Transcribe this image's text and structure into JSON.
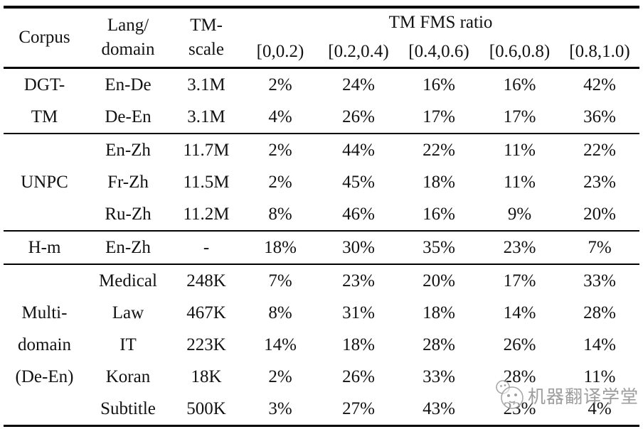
{
  "table": {
    "span_header": "TM FMS ratio",
    "columns": {
      "corpus": "Corpus",
      "lang_domain": "Lang/\ndomain",
      "tm_scale": "TM-\nscale"
    },
    "ratio_bins": [
      "[0,0.2)",
      "[0.2,0.4)",
      "[0.4,0.6)",
      "[0.6,0.8)",
      "[0.8,1.0)"
    ],
    "groups": [
      {
        "corpus": "DGT-\nTM",
        "rows": [
          {
            "lang": "En-De",
            "scale": "3.1M",
            "ratios": [
              "2%",
              "24%",
              "16%",
              "16%",
              "42%"
            ]
          },
          {
            "lang": "De-En",
            "scale": "3.1M",
            "ratios": [
              "4%",
              "26%",
              "17%",
              "17%",
              "36%"
            ]
          }
        ]
      },
      {
        "corpus": "UNPC",
        "rows": [
          {
            "lang": "En-Zh",
            "scale": "11.7M",
            "ratios": [
              "2%",
              "44%",
              "22%",
              "11%",
              "22%"
            ]
          },
          {
            "lang": "Fr-Zh",
            "scale": "11.5M",
            "ratios": [
              "2%",
              "45%",
              "18%",
              "11%",
              "23%"
            ]
          },
          {
            "lang": "Ru-Zh",
            "scale": "11.2M",
            "ratios": [
              "8%",
              "46%",
              "16%",
              "9%",
              "20%"
            ]
          }
        ]
      },
      {
        "corpus": "H-m",
        "rows": [
          {
            "lang": "En-Zh",
            "scale": "-",
            "ratios": [
              "18%",
              "30%",
              "35%",
              "23%",
              "7%"
            ]
          }
        ]
      },
      {
        "corpus": "Multi-\ndomain\n(De-En)",
        "rows": [
          {
            "lang": "Medical",
            "scale": "248K",
            "ratios": [
              "7%",
              "23%",
              "20%",
              "17%",
              "33%"
            ]
          },
          {
            "lang": "Law",
            "scale": "467K",
            "ratios": [
              "8%",
              "31%",
              "18%",
              "14%",
              "28%"
            ]
          },
          {
            "lang": "IT",
            "scale": "223K",
            "ratios": [
              "14%",
              "18%",
              "28%",
              "26%",
              "14%"
            ]
          },
          {
            "lang": "Koran",
            "scale": "18K",
            "ratios": [
              "2%",
              "26%",
              "33%",
              "28%",
              "11%"
            ]
          },
          {
            "lang": "Subtitle",
            "scale": "500K",
            "ratios": [
              "3%",
              "27%",
              "43%",
              "23%",
              "4%"
            ]
          }
        ]
      }
    ]
  },
  "watermark": {
    "text": "机器翻译学堂",
    "color": "#8c8c8c",
    "logo": "mascot-bubbles-logo"
  }
}
